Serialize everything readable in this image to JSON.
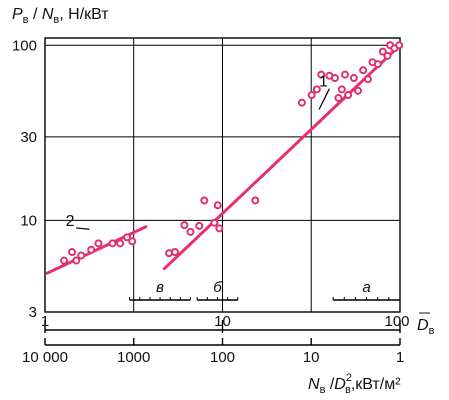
{
  "chart_data": {
    "type": "scatter",
    "scale": "log-log",
    "grid": true,
    "ylabel": {
      "p": "P",
      "p_sub": "в",
      "sep": " / ",
      "n": "N",
      "n_sub": "в",
      "unit": ", Н/кВт"
    },
    "xlabel_bottom": {
      "n": "N",
      "n_sub": "в",
      "sep": " /",
      "d": "D",
      "d_sup": "2",
      "d_sub": "в",
      "unit": ",кВт/м²"
    },
    "xlabel_top": {
      "d": "D",
      "d_sub": "в"
    },
    "xlim": [
      1,
      100
    ],
    "ylim": [
      3,
      110
    ],
    "x_ticks": [
      {
        "value": 1,
        "label": "1"
      },
      {
        "value": 10,
        "label": "10"
      },
      {
        "value": 100,
        "label": "100"
      }
    ],
    "y_ticks": [
      {
        "value": 3,
        "label": "3"
      },
      {
        "value": 10,
        "label": "10"
      },
      {
        "value": 30,
        "label": "30"
      },
      {
        "value": 100,
        "label": "100"
      }
    ],
    "bottom_ticks": [
      {
        "x": 1,
        "label": "10 000"
      },
      {
        "x": 3.16,
        "label": "1000"
      },
      {
        "x": 10,
        "label": "100"
      },
      {
        "x": 31.6,
        "label": "10"
      },
      {
        "x": 100,
        "label": "1"
      }
    ],
    "series": [
      {
        "id": "2",
        "line": [
          [
            1.03,
            5.0
          ],
          [
            3.7,
            9.2
          ]
        ],
        "points": [
          [
            1.28,
            5.9
          ],
          [
            1.42,
            6.6
          ],
          [
            1.5,
            5.9
          ],
          [
            1.6,
            6.3
          ],
          [
            1.82,
            6.8
          ],
          [
            2.0,
            7.4
          ],
          [
            2.4,
            7.4
          ],
          [
            2.65,
            7.4
          ],
          [
            2.9,
            8.0
          ],
          [
            3.1,
            7.6
          ]
        ]
      },
      {
        "id": "1",
        "line": [
          [
            4.7,
            5.3
          ],
          [
            100,
            100
          ]
        ],
        "points": [
          [
            5.0,
            6.5
          ],
          [
            5.4,
            6.6
          ],
          [
            6.1,
            9.4
          ],
          [
            6.6,
            8.6
          ],
          [
            7.4,
            9.3
          ],
          [
            7.9,
            13.0
          ],
          [
            9.0,
            9.7
          ],
          [
            9.6,
            9.0
          ],
          [
            9.4,
            12.2
          ],
          [
            15.3,
            13.0
          ],
          [
            28.0,
            47.0
          ],
          [
            31.8,
            52.0
          ],
          [
            34.0,
            56.0
          ],
          [
            36.0,
            68.0
          ],
          [
            40.0,
            67.0
          ],
          [
            43.0,
            65.0
          ],
          [
            45.0,
            50.0
          ],
          [
            47.0,
            56.0
          ],
          [
            49.0,
            68.0
          ],
          [
            51.0,
            52.0
          ],
          [
            55.0,
            65.0
          ],
          [
            58.0,
            55.0
          ],
          [
            62.0,
            72.0
          ],
          [
            66.0,
            64.0
          ],
          [
            70.0,
            80.0
          ],
          [
            75.0,
            78.0
          ],
          [
            80.0,
            92.0
          ],
          [
            85.0,
            87.0
          ],
          [
            88.0,
            100.0
          ],
          [
            93.0,
            96.0
          ],
          [
            99.0,
            100.0
          ]
        ]
      }
    ],
    "annotations": [
      {
        "id": "label-1",
        "text": "1",
        "x": 38.0,
        "y": 58.0,
        "leader_to": [
          35.0,
          43.0
        ]
      },
      {
        "id": "label-2",
        "text": "2",
        "x": 1.42,
        "y": 9.3,
        "leader_to": [
          1.78,
          8.9
        ]
      }
    ],
    "ranges": [
      {
        "label": "в",
        "from": 3.0,
        "to": 6.6
      },
      {
        "label": "б",
        "from": 7.2,
        "to": 12.2
      },
      {
        "label": "а",
        "from": 42.0,
        "to": 100.0
      }
    ],
    "colors": {
      "marker": "#e0306b",
      "fit_line": "#e8306e",
      "axis": "#000000",
      "grid": "#000000"
    }
  }
}
